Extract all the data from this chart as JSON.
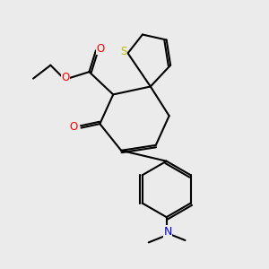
{
  "bg_color": "#EBEBEB",
  "bond_color": "#000000",
  "bond_width": 1.5,
  "S_color": "#BBBB00",
  "O_color": "#FF0000",
  "N_color": "#0000CC",
  "figsize": [
    3.0,
    3.0
  ],
  "dpi": 100,
  "xlim": [
    0,
    10
  ],
  "ylim": [
    0,
    10
  ]
}
